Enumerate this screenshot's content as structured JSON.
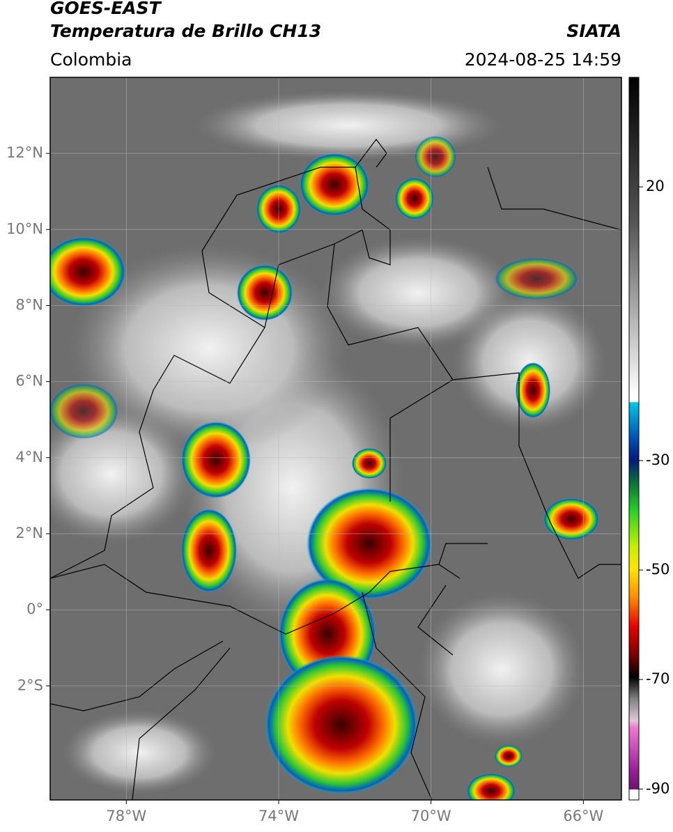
{
  "header": {
    "title": "GOES-EAST",
    "subtitle": "Temperatura de Brillo CH13",
    "source": "SIATA",
    "region": "Colombia",
    "datetime": "2024-08-25 14:59"
  },
  "map": {
    "xlim": [
      -80,
      -65
    ],
    "ylim": [
      -5,
      14
    ],
    "xticks": [
      {
        "value": -78,
        "label": "78°W"
      },
      {
        "value": -74,
        "label": "74°W"
      },
      {
        "value": -70,
        "label": "70°W"
      },
      {
        "value": -66,
        "label": "66°W"
      }
    ],
    "yticks": [
      {
        "value": -2,
        "label": "2°S"
      },
      {
        "value": 0,
        "label": "0°"
      },
      {
        "value": 2,
        "label": "2°N"
      },
      {
        "value": 4,
        "label": "4°N"
      },
      {
        "value": 6,
        "label": "6°N"
      },
      {
        "value": 8,
        "label": "8°N"
      },
      {
        "value": 10,
        "label": "10°N"
      },
      {
        "value": 12,
        "label": "12°N"
      }
    ],
    "grid": true
  },
  "colorbar": {
    "lim": [
      -92,
      40
    ],
    "ticks": [
      20,
      -30,
      -50,
      -70,
      -90
    ]
  }
}
